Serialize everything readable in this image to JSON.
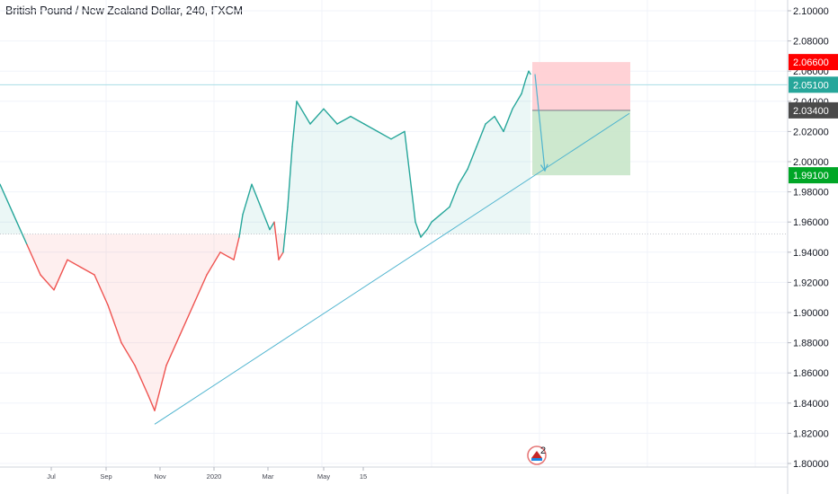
{
  "header": {
    "title": "British Pound / New Zealand Dollar, 240, FXCM"
  },
  "colors": {
    "up": "#26a69a",
    "down": "#ef5350",
    "trendline": "#4fb4cf",
    "stop_zone": "#ffcdd2",
    "target_zone": "#c8e6c9",
    "stop_badge": "#ff0000",
    "price_badge": "#26a69a",
    "entry_badge": "#4a4a4a",
    "target_badge": "#00a626"
  },
  "chart_data": {
    "type": "line",
    "symbol": "British Pound / New Zealand Dollar",
    "interval": "240",
    "source": "FXCM",
    "y_axis": {
      "range": [
        1.795,
        2.11
      ],
      "ticks": [
        "2.10000",
        "2.08000",
        "2.06000",
        "2.04000",
        "2.02000",
        "2.00000",
        "1.98000",
        "1.96000",
        "1.94000",
        "1.92000",
        "1.90000",
        "1.88000",
        "1.86000",
        "1.84000",
        "1.82000",
        "1.80000"
      ]
    },
    "x_axis": {
      "tick_labels": [
        "Jul",
        "Sep",
        "Nov",
        "2020",
        "Mar",
        "May",
        "15"
      ]
    },
    "baseline": 1.952,
    "series": [
      {
        "x": [
          0,
          15,
          30,
          45,
          60,
          75,
          90,
          105,
          120,
          135,
          150,
          165,
          172,
          185,
          200,
          215,
          230,
          245,
          260,
          266,
          270,
          280,
          290,
          300,
          305,
          310,
          315,
          320,
          325,
          330,
          345,
          360,
          375,
          390,
          405,
          420,
          435,
          450,
          458,
          462,
          468,
          475,
          480,
          490,
          500,
          510,
          520,
          530,
          540,
          550,
          560,
          570,
          580,
          585,
          588,
          590
        ],
        "values": [
          1.985,
          1.965,
          1.945,
          1.925,
          1.915,
          1.935,
          1.93,
          1.925,
          1.905,
          1.88,
          1.865,
          1.845,
          1.835,
          1.865,
          1.885,
          1.905,
          1.925,
          1.94,
          1.935,
          1.95,
          1.965,
          1.985,
          1.97,
          1.955,
          1.96,
          1.935,
          1.94,
          1.97,
          2.01,
          2.04,
          2.025,
          2.035,
          2.025,
          2.03,
          2.025,
          2.02,
          2.015,
          2.02,
          1.98,
          1.96,
          1.95,
          1.955,
          1.96,
          1.965,
          1.97,
          1.985,
          1.995,
          2.01,
          2.025,
          2.03,
          2.02,
          2.035,
          2.045,
          2.055,
          2.06,
          2.058
        ]
      }
    ],
    "trendline": {
      "from": {
        "x": 172,
        "y": 1.826
      },
      "to": {
        "x": 700,
        "y": 2.032
      }
    },
    "horizontal_line": 2.051,
    "position": {
      "type": "short",
      "x_start": 592,
      "x_end": 701,
      "stop": 2.066,
      "entry": 2.034,
      "target": 1.991
    },
    "projection_arrow": {
      "from": {
        "x": 595,
        "y": 2.058
      },
      "to": {
        "x": 606,
        "y": 1.994
      }
    },
    "price_labels": [
      {
        "kind": "stop",
        "price": 2.066,
        "text": "2.06600"
      },
      {
        "kind": "last",
        "price": 2.051,
        "text": "2.05100"
      },
      {
        "kind": "entry",
        "price": 2.034,
        "text": "2.03400"
      },
      {
        "kind": "target",
        "price": 1.991,
        "text": "1.99100"
      }
    ],
    "event_badge": {
      "text": "2"
    }
  }
}
